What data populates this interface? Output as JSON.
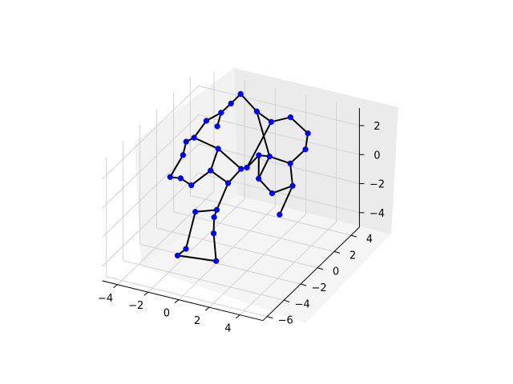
{
  "chart_data": {
    "type": "scatter",
    "projection": "3d",
    "title": "",
    "xlabel": "",
    "ylabel": "",
    "zlabel": "",
    "grid": true,
    "x_ticks": [
      "−4",
      "−2",
      "0",
      "2",
      "4"
    ],
    "y_ticks": [
      "−6",
      "−4",
      "−2",
      "0",
      "2",
      "4"
    ],
    "z_ticks": [
      "−4",
      "−2",
      "0",
      "2"
    ],
    "xlim": [
      -5,
      5.5
    ],
    "ylim": [
      -6.5,
      5
    ],
    "zlim": [
      -5,
      3.2
    ],
    "series": [
      {
        "marker_color": "#0000ff",
        "line_color": "#000000",
        "points": [
          {
            "x": -3.9,
            "y": 1.5,
            "z": 0.4
          },
          {
            "x": -3.5,
            "y": 0.4,
            "z": 0.2
          },
          {
            "x": -3.0,
            "y": 0.8,
            "z": 1.3
          },
          {
            "x": -2.8,
            "y": 1.9,
            "z": 1.9
          },
          {
            "x": -2.0,
            "y": 2.2,
            "z": 2.5
          },
          {
            "x": -1.7,
            "y": 1.2,
            "z": 2.2
          },
          {
            "x": -1.9,
            "y": 3.2,
            "z": 2.6
          },
          {
            "x": -1.6,
            "y": 3.8,
            "z": 3.0
          },
          {
            "x": -0.6,
            "y": 3.9,
            "z": 2.0
          },
          {
            "x": 0.4,
            "y": 3.8,
            "z": 1.6
          },
          {
            "x": 1.0,
            "y": 5.0,
            "z": 1.4
          },
          {
            "x": 2.3,
            "y": 4.7,
            "z": 0.8
          },
          {
            "x": 2.8,
            "y": 3.5,
            "z": 0.5
          },
          {
            "x": 2.3,
            "y": 2.6,
            "z": -0.1
          },
          {
            "x": 3.0,
            "y": 1.6,
            "z": -0.9
          },
          {
            "x": 2.1,
            "y": 0.8,
            "z": -1.2
          },
          {
            "x": 2.7,
            "y": 0.6,
            "z": -2.4
          },
          {
            "x": 1.0,
            "y": 1.2,
            "z": -0.7
          },
          {
            "x": 1.0,
            "y": 2.5,
            "z": 0.1
          },
          {
            "x": 0.3,
            "y": 2.5,
            "z": 0.0
          },
          {
            "x": -0.2,
            "y": 2.0,
            "z": -0.7
          },
          {
            "x": -0.2,
            "y": 1.3,
            "z": -0.4
          },
          {
            "x": -0.5,
            "y": 0.3,
            "z": -0.9
          },
          {
            "x": -1.7,
            "y": 0.4,
            "z": -0.4
          },
          {
            "x": -1.7,
            "y": 1.3,
            "z": 0.6
          },
          {
            "x": -2.3,
            "y": -0.8,
            "z": -0.9
          },
          {
            "x": -3.0,
            "y": -0.8,
            "z": -0.6
          },
          {
            "x": -3.3,
            "y": -1.5,
            "z": -0.2
          },
          {
            "x": -0.2,
            "y": -1.6,
            "z": -1.6
          },
          {
            "x": -0.1,
            "y": -2.1,
            "z": -1.8
          },
          {
            "x": -1.6,
            "y": -1.6,
            "z": -2.1
          },
          {
            "x": 0.2,
            "y": -2.7,
            "z": -2.5
          },
          {
            "x": 0.8,
            "y": -3.5,
            "z": -3.8
          },
          {
            "x": -1.5,
            "y": -2.9,
            "z": -3.9
          },
          {
            "x": -1.5,
            "y": -3.9,
            "z": -3.8
          }
        ],
        "bonds": [
          [
            0,
            1
          ],
          [
            0,
            2
          ],
          [
            2,
            3
          ],
          [
            3,
            4
          ],
          [
            4,
            5
          ],
          [
            4,
            6
          ],
          [
            6,
            7
          ],
          [
            7,
            8
          ],
          [
            8,
            9
          ],
          [
            9,
            10
          ],
          [
            10,
            11
          ],
          [
            11,
            12
          ],
          [
            12,
            13
          ],
          [
            13,
            14
          ],
          [
            14,
            15
          ],
          [
            14,
            16
          ],
          [
            15,
            17
          ],
          [
            17,
            18
          ],
          [
            18,
            19
          ],
          [
            13,
            18
          ],
          [
            8,
            18
          ],
          [
            19,
            20
          ],
          [
            20,
            21
          ],
          [
            21,
            22
          ],
          [
            22,
            23
          ],
          [
            23,
            24
          ],
          [
            24,
            2
          ],
          [
            24,
            21
          ],
          [
            20,
            9
          ],
          [
            19,
            17
          ],
          [
            23,
            25
          ],
          [
            25,
            26
          ],
          [
            26,
            27
          ],
          [
            27,
            1
          ],
          [
            22,
            28
          ],
          [
            28,
            29
          ],
          [
            28,
            30
          ],
          [
            29,
            31
          ],
          [
            31,
            32
          ],
          [
            32,
            34
          ],
          [
            34,
            33
          ],
          [
            33,
            30
          ]
        ]
      }
    ]
  }
}
